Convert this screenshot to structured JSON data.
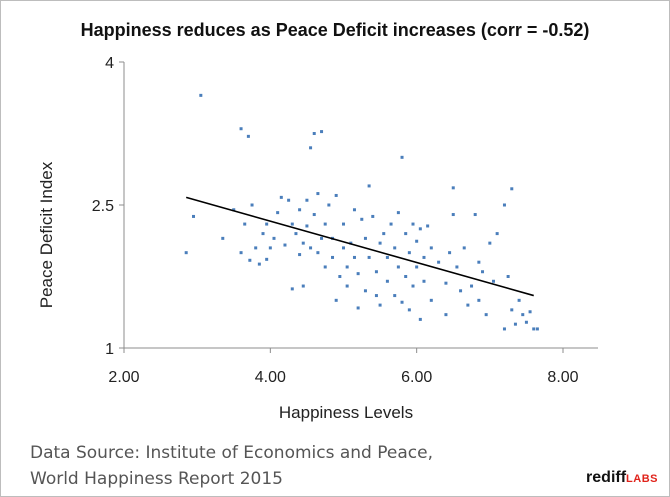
{
  "chart_data": {
    "type": "scatter",
    "title": "Happiness reduces as Peace Deficit increases (corr = -0.52)",
    "xlabel": "Happiness Levels",
    "ylabel": "Peace Deficit Index",
    "xlim": [
      2.0,
      8.0
    ],
    "ylim": [
      1.0,
      4.0
    ],
    "xticks": [
      "2.00",
      "4.00",
      "6.00",
      "8.00"
    ],
    "yticks": [
      "1",
      "2.5",
      "4"
    ],
    "grid": false,
    "point_color": "#4a7ebb",
    "trendline": {
      "x": [
        2.85,
        7.6
      ],
      "y": [
        2.58,
        1.55
      ],
      "color": "#000000"
    },
    "points": [
      [
        2.85,
        2.0
      ],
      [
        2.95,
        2.38
      ],
      [
        3.05,
        3.65
      ],
      [
        3.35,
        2.15
      ],
      [
        3.5,
        2.45
      ],
      [
        3.6,
        2.0
      ],
      [
        3.6,
        3.3
      ],
      [
        3.65,
        2.3
      ],
      [
        3.7,
        3.22
      ],
      [
        3.72,
        1.92
      ],
      [
        3.75,
        2.5
      ],
      [
        3.8,
        2.05
      ],
      [
        3.85,
        1.88
      ],
      [
        3.9,
        2.2
      ],
      [
        3.95,
        1.93
      ],
      [
        3.95,
        2.3
      ],
      [
        4.0,
        2.05
      ],
      [
        4.05,
        2.15
      ],
      [
        4.1,
        2.42
      ],
      [
        4.15,
        2.58
      ],
      [
        4.2,
        2.08
      ],
      [
        4.25,
        2.55
      ],
      [
        4.3,
        2.3
      ],
      [
        4.3,
        1.62
      ],
      [
        4.35,
        2.2
      ],
      [
        4.4,
        1.98
      ],
      [
        4.4,
        2.45
      ],
      [
        4.45,
        2.1
      ],
      [
        4.45,
        1.65
      ],
      [
        4.5,
        2.28
      ],
      [
        4.5,
        2.55
      ],
      [
        4.55,
        3.1
      ],
      [
        4.55,
        2.05
      ],
      [
        4.6,
        3.25
      ],
      [
        4.6,
        2.4
      ],
      [
        4.65,
        2.62
      ],
      [
        4.65,
        2.0
      ],
      [
        4.7,
        3.27
      ],
      [
        4.7,
        2.15
      ],
      [
        4.75,
        2.3
      ],
      [
        4.75,
        1.85
      ],
      [
        4.8,
        2.5
      ],
      [
        4.85,
        2.15
      ],
      [
        4.85,
        1.95
      ],
      [
        4.9,
        1.5
      ],
      [
        4.9,
        2.6
      ],
      [
        4.95,
        1.75
      ],
      [
        5.0,
        2.3
      ],
      [
        5.0,
        2.05
      ],
      [
        5.05,
        1.85
      ],
      [
        5.05,
        1.65
      ],
      [
        5.1,
        2.1
      ],
      [
        5.15,
        2.45
      ],
      [
        5.15,
        1.95
      ],
      [
        5.2,
        1.78
      ],
      [
        5.2,
        1.42
      ],
      [
        5.25,
        2.35
      ],
      [
        5.3,
        2.15
      ],
      [
        5.3,
        1.6
      ],
      [
        5.35,
        2.7
      ],
      [
        5.35,
        1.95
      ],
      [
        5.4,
        2.38
      ],
      [
        5.45,
        1.8
      ],
      [
        5.45,
        1.55
      ],
      [
        5.5,
        2.1
      ],
      [
        5.5,
        1.45
      ],
      [
        5.55,
        2.2
      ],
      [
        5.6,
        1.95
      ],
      [
        5.6,
        1.7
      ],
      [
        5.65,
        2.3
      ],
      [
        5.7,
        2.05
      ],
      [
        5.7,
        1.55
      ],
      [
        5.75,
        2.42
      ],
      [
        5.75,
        1.85
      ],
      [
        5.8,
        3.0
      ],
      [
        5.8,
        1.48
      ],
      [
        5.85,
        2.2
      ],
      [
        5.85,
        1.75
      ],
      [
        5.9,
        2.0
      ],
      [
        5.9,
        1.4
      ],
      [
        5.95,
        2.3
      ],
      [
        5.95,
        1.65
      ],
      [
        6.0,
        2.12
      ],
      [
        6.0,
        1.85
      ],
      [
        6.05,
        2.25
      ],
      [
        6.05,
        1.3
      ],
      [
        6.1,
        1.95
      ],
      [
        6.1,
        1.7
      ],
      [
        6.15,
        2.28
      ],
      [
        6.2,
        2.05
      ],
      [
        6.2,
        1.5
      ],
      [
        6.3,
        1.9
      ],
      [
        6.4,
        1.68
      ],
      [
        6.4,
        1.35
      ],
      [
        6.45,
        2.0
      ],
      [
        6.5,
        2.68
      ],
      [
        6.5,
        2.4
      ],
      [
        6.55,
        1.85
      ],
      [
        6.6,
        1.6
      ],
      [
        6.65,
        2.05
      ],
      [
        6.7,
        1.45
      ],
      [
        6.75,
        1.65
      ],
      [
        6.8,
        2.4
      ],
      [
        6.85,
        1.9
      ],
      [
        6.85,
        1.5
      ],
      [
        6.9,
        1.8
      ],
      [
        6.95,
        1.35
      ],
      [
        7.0,
        2.1
      ],
      [
        7.05,
        1.7
      ],
      [
        7.1,
        2.2
      ],
      [
        7.2,
        2.5
      ],
      [
        7.2,
        1.2
      ],
      [
        7.25,
        1.75
      ],
      [
        7.3,
        2.67
      ],
      [
        7.3,
        1.4
      ],
      [
        7.35,
        1.25
      ],
      [
        7.4,
        1.5
      ],
      [
        7.45,
        1.35
      ],
      [
        7.5,
        1.27
      ],
      [
        7.55,
        1.38
      ],
      [
        7.6,
        1.2
      ],
      [
        7.65,
        1.2
      ]
    ]
  },
  "footer": {
    "source_line1": "Data Source: Institute of Economics and Peace,",
    "source_line2": "World Happiness Report 2015",
    "brand_main": "rediff",
    "brand_sub": "LABS"
  }
}
